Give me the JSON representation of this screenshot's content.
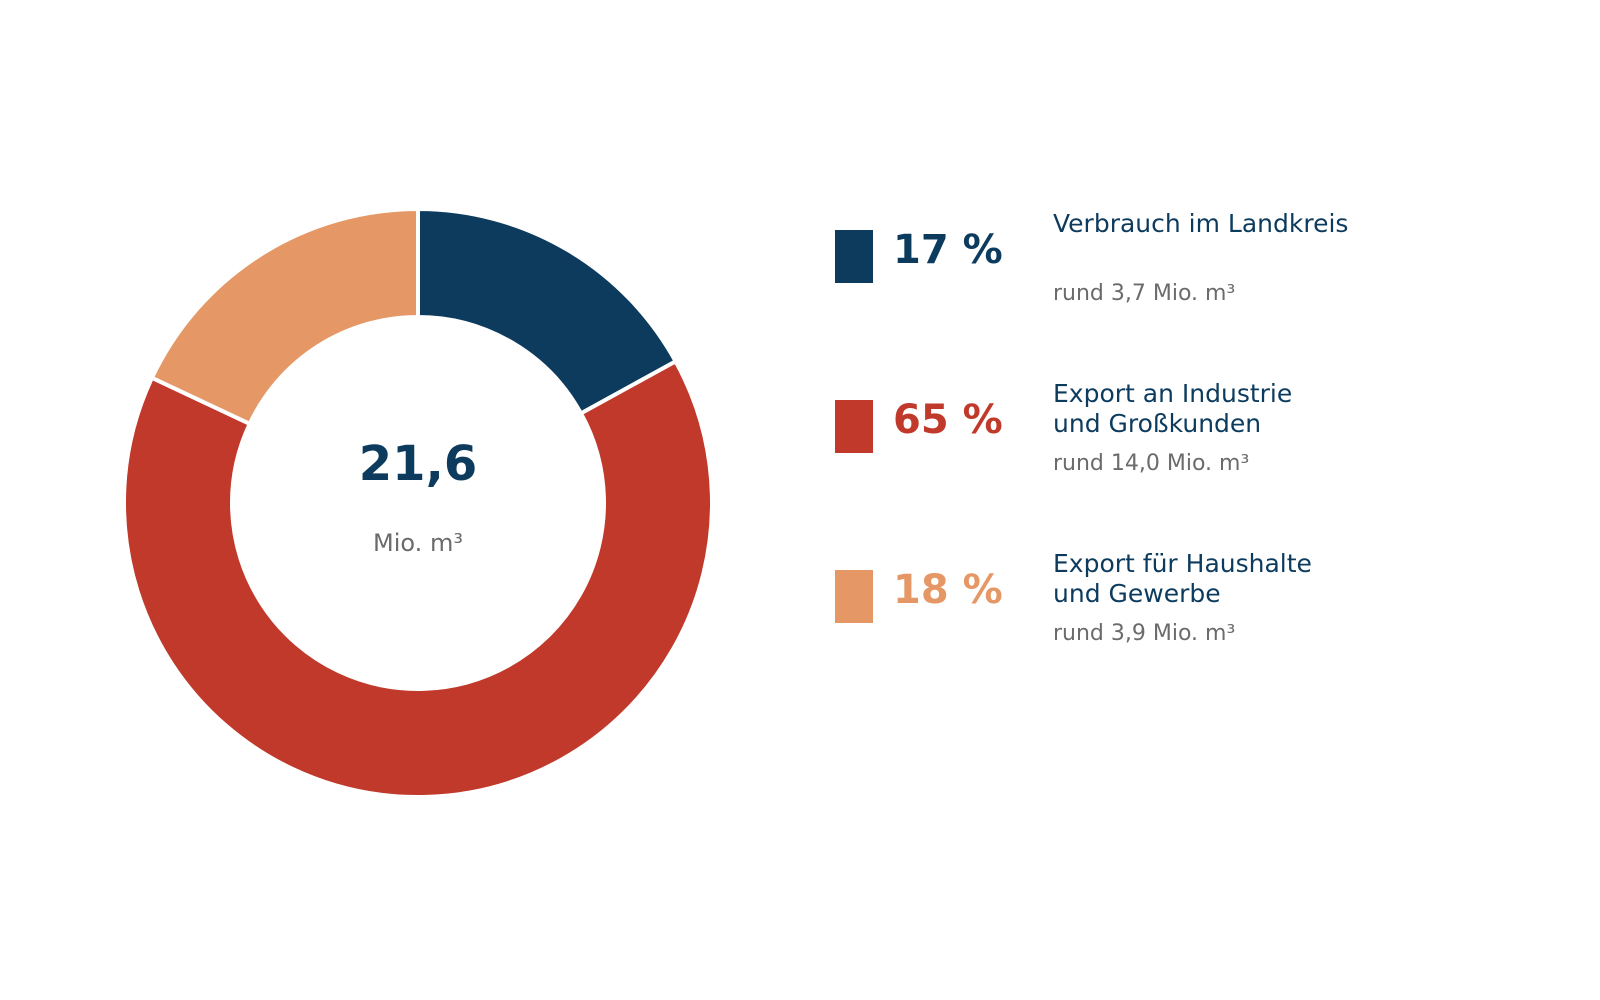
{
  "chart_data": {
    "type": "pie",
    "center": {
      "value": "21,6",
      "unit": "Mio. m³"
    },
    "slices": [
      {
        "name": "Verbrauch im Landkreis",
        "percent": 17,
        "percent_label": "17 %",
        "amount_label": "rund 3,7 Mio. m³",
        "color": "#0c3b5e"
      },
      {
        "name": "Export an Industrie\nund Großkunden",
        "percent": 65,
        "percent_label": "65 %",
        "amount_label": "rund 14,0 Mio. m³",
        "color": "#c0392b"
      },
      {
        "name": "Export für Haushalte\nund Gewerbe",
        "percent": 18,
        "percent_label": "18 %",
        "amount_label": "rund 3,9 Mio. m³",
        "color": "#e59866"
      }
    ],
    "legend_placement": "right"
  }
}
